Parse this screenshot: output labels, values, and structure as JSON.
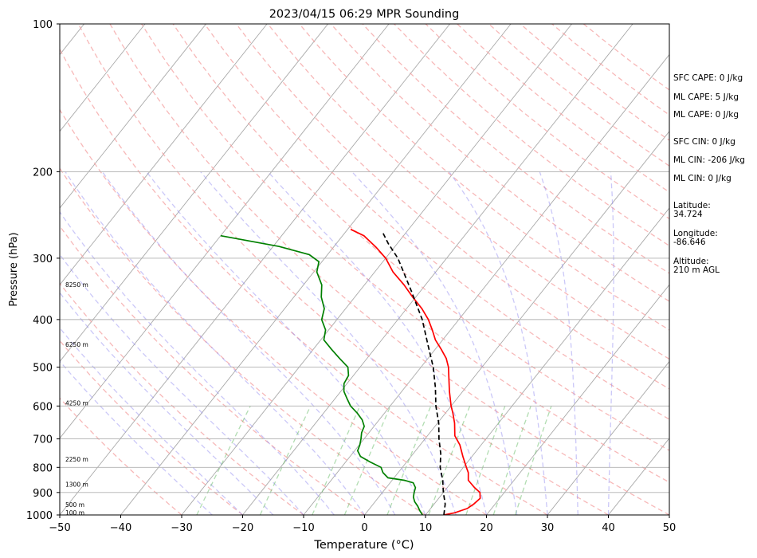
{
  "chart_data": {
    "type": "line",
    "title": "2023/04/15 06:29 MPR Sounding",
    "xlabel": "Temperature (°C)",
    "ylabel": "Pressure (hPa)",
    "xlim": [
      -50,
      50
    ],
    "ylim": [
      1000,
      100
    ],
    "y_scale": "log",
    "skew_deg_per_decade_estimate": 64,
    "x_ticks": [
      -50,
      -40,
      -30,
      -20,
      -10,
      0,
      10,
      20,
      30,
      40,
      50
    ],
    "x_tick_labels": [
      "−50",
      "−40",
      "−30",
      "−20",
      "−10",
      "0",
      "10",
      "20",
      "30",
      "40",
      "50"
    ],
    "y_ticks": [
      1000,
      900,
      800,
      700,
      600,
      500,
      400,
      300,
      200,
      100
    ],
    "y_tick_labels": [
      "1000",
      "900",
      "800",
      "700",
      "600",
      "500",
      "400",
      "300",
      "200",
      "100"
    ],
    "grid": true,
    "height_labels": [
      {
        "text": "100 m",
        "p": 990
      },
      {
        "text": "500 m",
        "p": 955
      },
      {
        "text": "1300 m",
        "p": 867
      },
      {
        "text": "2250 m",
        "p": 771
      },
      {
        "text": "4250 m",
        "p": 592
      },
      {
        "text": "6250 m",
        "p": 450
      },
      {
        "text": "8250 m",
        "p": 340
      }
    ],
    "series": [
      {
        "color": "#ff0000",
        "points": [
          [
            1000,
            13.0
          ],
          [
            990,
            14.5
          ],
          [
            970,
            16.0
          ],
          [
            950,
            16.5
          ],
          [
            925,
            16.8
          ],
          [
            900,
            16.0
          ],
          [
            880,
            14.5
          ],
          [
            850,
            12.5
          ],
          [
            820,
            11.5
          ],
          [
            800,
            10.5
          ],
          [
            760,
            8.5
          ],
          [
            720,
            6.5
          ],
          [
            690,
            4.5
          ],
          [
            650,
            2.8
          ],
          [
            620,
            1.2
          ],
          [
            600,
            0.0
          ],
          [
            560,
            -2.2
          ],
          [
            530,
            -3.8
          ],
          [
            500,
            -5.5
          ],
          [
            480,
            -7.0
          ],
          [
            460,
            -9.0
          ],
          [
            440,
            -11.2
          ],
          [
            420,
            -13.0
          ],
          [
            400,
            -15.0
          ],
          [
            380,
            -17.5
          ],
          [
            360,
            -20.5
          ],
          [
            340,
            -23.5
          ],
          [
            320,
            -27.0
          ],
          [
            300,
            -30.0
          ],
          [
            285,
            -33.0
          ],
          [
            270,
            -36.5
          ],
          [
            262,
            -39.5
          ]
        ]
      },
      {
        "color": "#008000",
        "points": [
          [
            1000,
            9.5
          ],
          [
            980,
            8.5
          ],
          [
            960,
            7.6
          ],
          [
            940,
            6.5
          ],
          [
            920,
            5.7
          ],
          [
            900,
            5.2
          ],
          [
            880,
            4.8
          ],
          [
            860,
            3.8
          ],
          [
            850,
            2.0
          ],
          [
            840,
            -1.0
          ],
          [
            820,
            -2.5
          ],
          [
            800,
            -3.5
          ],
          [
            780,
            -6.0
          ],
          [
            760,
            -8.3
          ],
          [
            740,
            -9.5
          ],
          [
            720,
            -9.9
          ],
          [
            700,
            -10.5
          ],
          [
            680,
            -11.2
          ],
          [
            660,
            -11.6
          ],
          [
            640,
            -12.8
          ],
          [
            620,
            -14.5
          ],
          [
            600,
            -16.5
          ],
          [
            580,
            -18.0
          ],
          [
            560,
            -19.5
          ],
          [
            540,
            -20.5
          ],
          [
            520,
            -20.8
          ],
          [
            500,
            -22.0
          ],
          [
            480,
            -24.5
          ],
          [
            460,
            -27.0
          ],
          [
            440,
            -29.5
          ],
          [
            420,
            -30.5
          ],
          [
            400,
            -32.5
          ],
          [
            380,
            -33.5
          ],
          [
            360,
            -35.5
          ],
          [
            340,
            -37.0
          ],
          [
            320,
            -39.5
          ],
          [
            305,
            -40.5
          ],
          [
            295,
            -43.0
          ],
          [
            284,
            -49.0
          ],
          [
            270,
            -60.0
          ]
        ]
      },
      {
        "color": "#000000",
        "style": "dashed",
        "points": [
          [
            1000,
            13.0
          ],
          [
            950,
            11.8
          ],
          [
            900,
            10.0
          ],
          [
            850,
            8.3
          ],
          [
            800,
            6.2
          ],
          [
            750,
            4.5
          ],
          [
            700,
            2.3
          ],
          [
            650,
            0.2
          ],
          [
            600,
            -2.5
          ],
          [
            550,
            -5.0
          ],
          [
            500,
            -8.0
          ],
          [
            450,
            -11.8
          ],
          [
            400,
            -16.0
          ],
          [
            350,
            -21.5
          ],
          [
            300,
            -28.0
          ],
          [
            280,
            -31.5
          ],
          [
            265,
            -34.0
          ]
        ]
      }
    ]
  },
  "side_panel": {
    "sfc_cape": "SFC CAPE: 0 J/kg",
    "ml_cape_1": "ML CAPE: 5 J/kg",
    "ml_cape_2": "ML CAPE: 0 J/kg",
    "sfc_cin": "SFC CIN: 0 J/kg",
    "ml_cin_1": "ML CIN: -206 J/kg",
    "ml_cin_2": "ML CIN: 0 J/kg",
    "latitude_label": "Latitude:",
    "latitude_value": "34.724",
    "longitude_label": "Longitude:",
    "longitude_value": "-86.646",
    "altitude_label": "Altitude:",
    "altitude_value": "210 m AGL"
  }
}
